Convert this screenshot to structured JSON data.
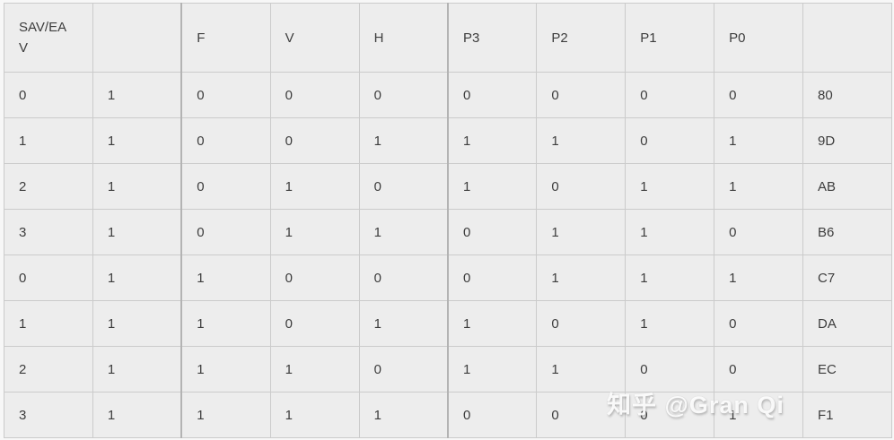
{
  "table": {
    "header": {
      "first_column_lines": [
        "SAV/EA",
        "V"
      ],
      "rest_columns": [
        "",
        "F",
        "V",
        "H",
        "P3",
        "P2",
        "P1",
        "P0",
        ""
      ]
    },
    "rows": [
      [
        "0",
        "1",
        "0",
        "0",
        "0",
        "0",
        "0",
        "0",
        "0",
        "80"
      ],
      [
        "1",
        "1",
        "0",
        "0",
        "1",
        "1",
        "1",
        "0",
        "1",
        "9D"
      ],
      [
        "2",
        "1",
        "0",
        "1",
        "0",
        "1",
        "0",
        "1",
        "1",
        "AB"
      ],
      [
        "3",
        "1",
        "0",
        "1",
        "1",
        "0",
        "1",
        "1",
        "0",
        "B6"
      ],
      [
        "0",
        "1",
        "1",
        "0",
        "0",
        "0",
        "1",
        "1",
        "1",
        "C7"
      ],
      [
        "1",
        "1",
        "1",
        "0",
        "1",
        "1",
        "0",
        "1",
        "0",
        "DA"
      ],
      [
        "2",
        "1",
        "1",
        "1",
        "0",
        "1",
        "1",
        "0",
        "0",
        "EC"
      ],
      [
        "3",
        "1",
        "1",
        "1",
        "1",
        "0",
        "0",
        "0",
        "1",
        "F1"
      ]
    ]
  },
  "watermark": {
    "text": "知乎 @Gran Qi"
  },
  "colors": {
    "page_bg": "#f7f7f7",
    "cell_bg": "#ededed",
    "border": "#cbcbcb",
    "border_heavy": "#b3b3b3",
    "text": "#3d3d3d"
  }
}
